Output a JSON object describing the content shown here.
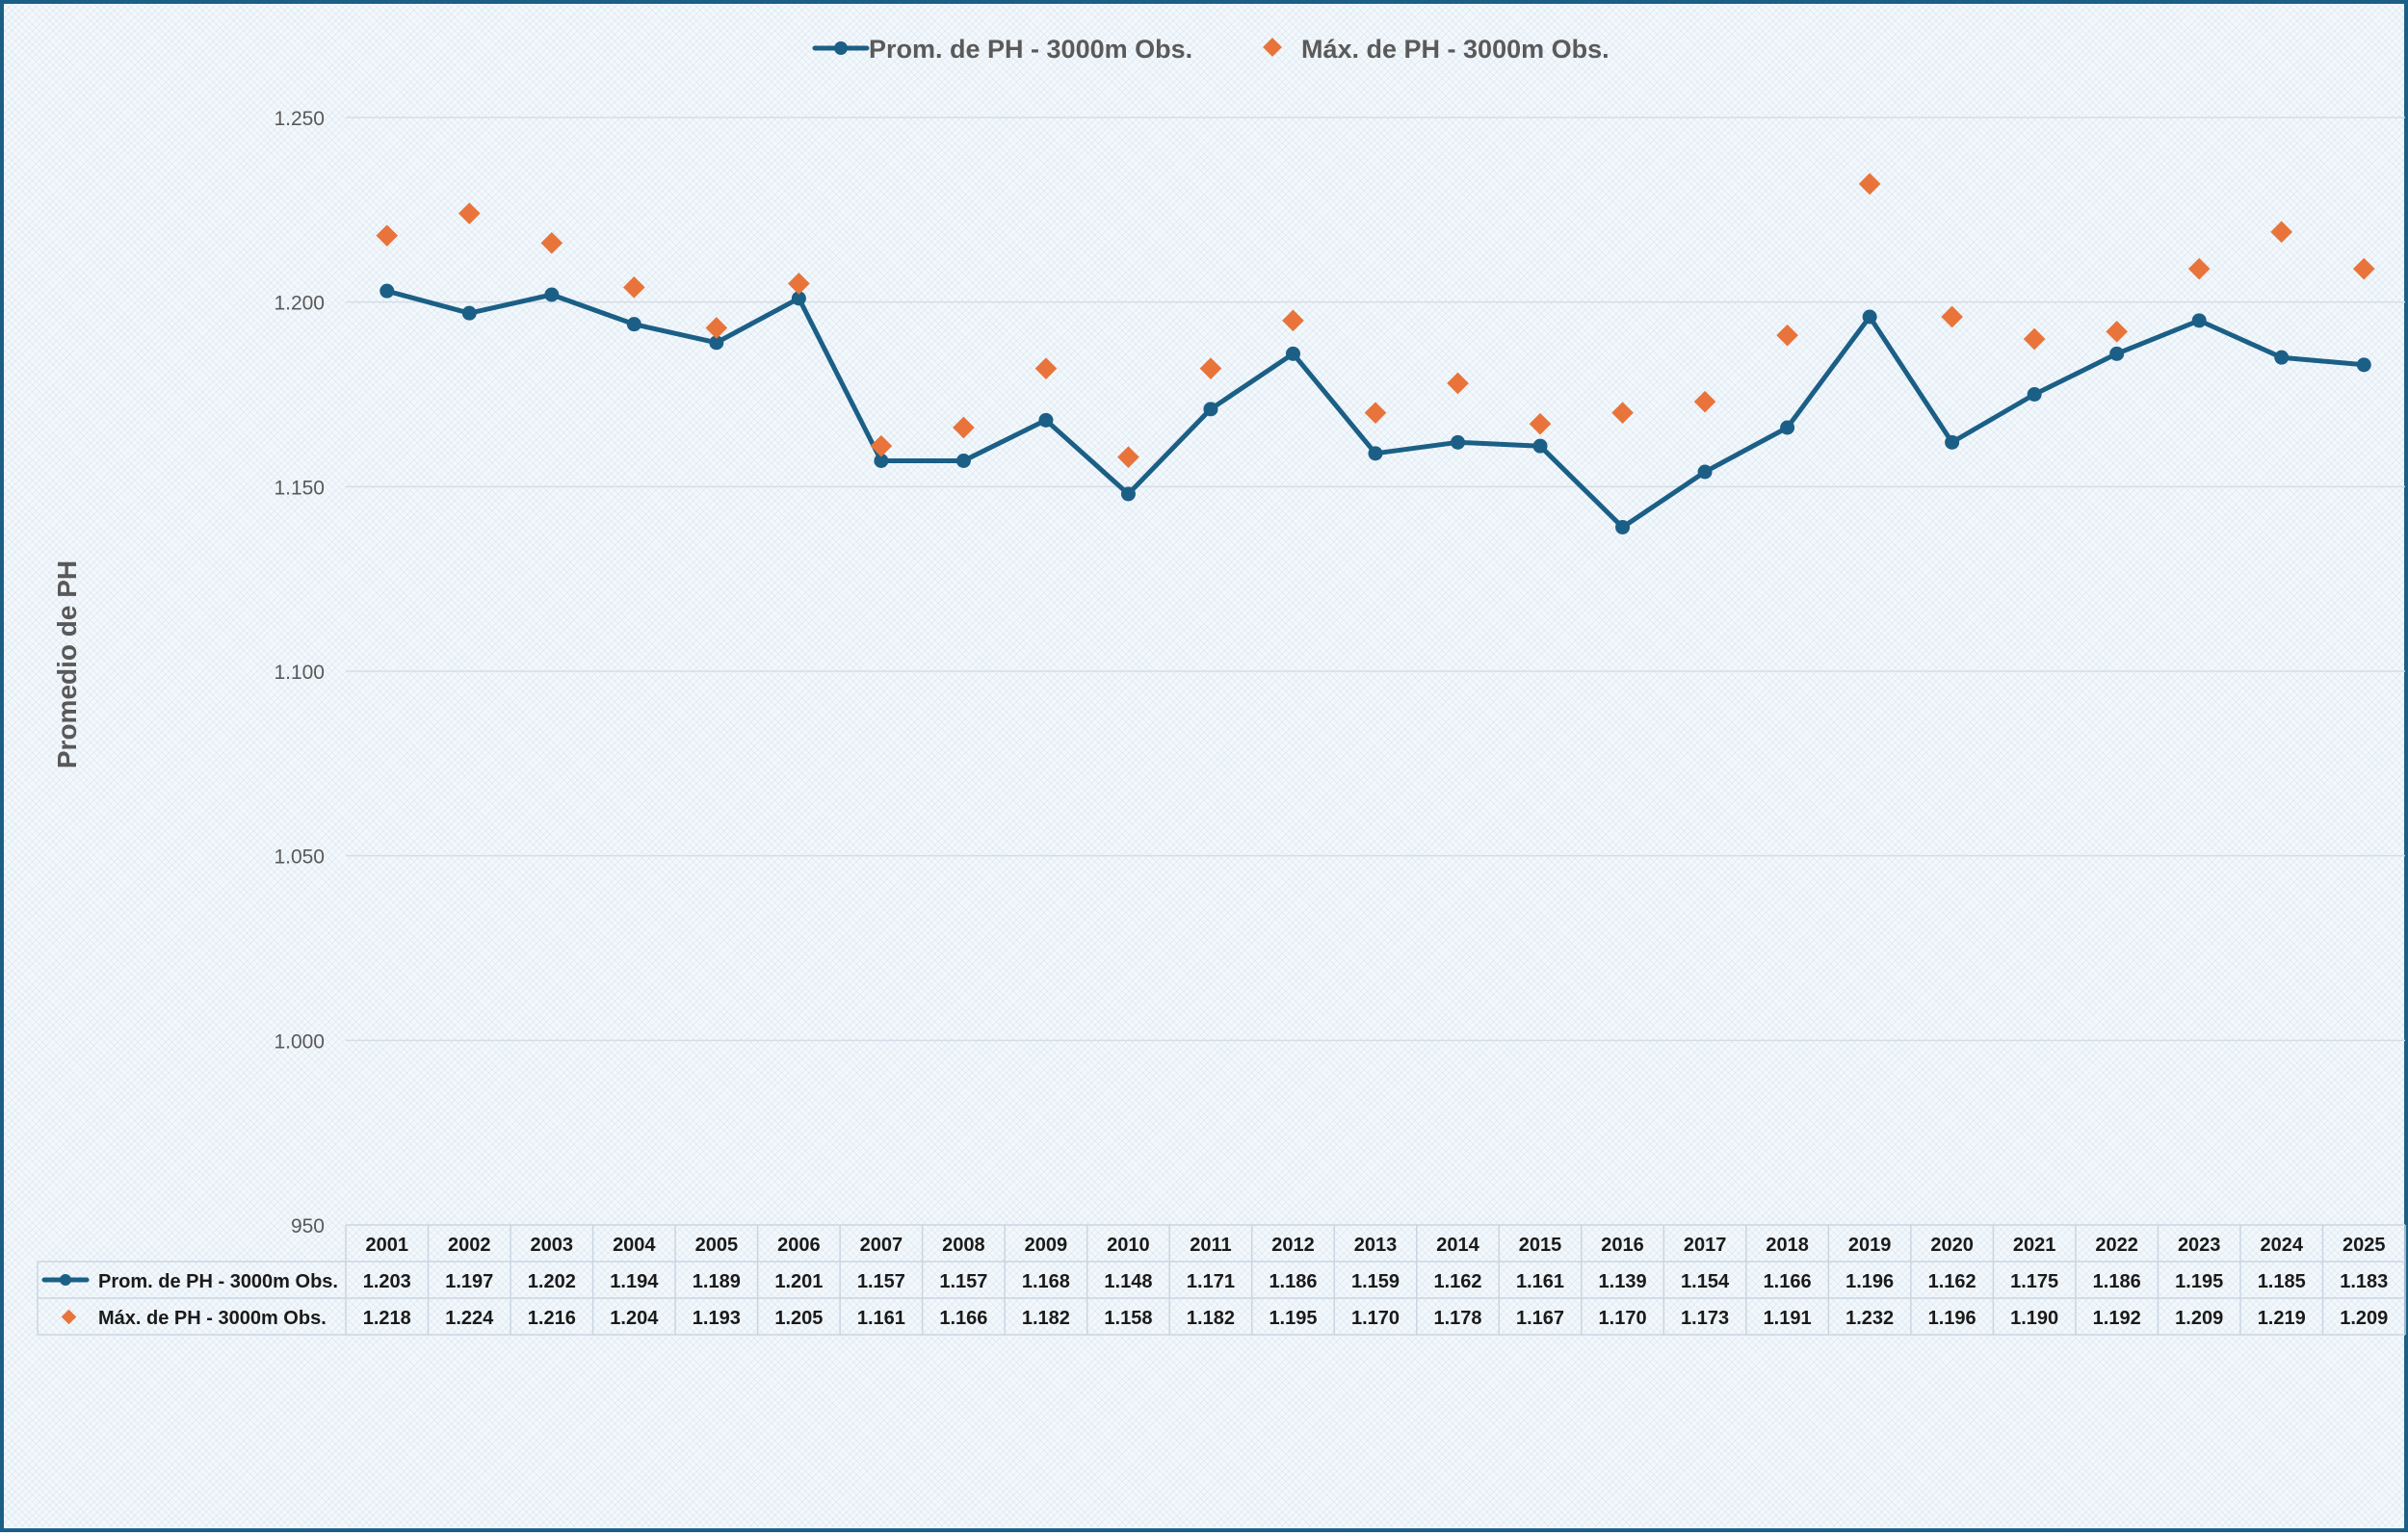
{
  "chart_data": {
    "type": "line",
    "title": "",
    "ylabel": "Promedio de PH",
    "xlabel": "",
    "ylim": [
      950,
      1250
    ],
    "y_ticks": [
      950,
      1000,
      1050,
      1100,
      1150,
      1200,
      1250
    ],
    "y_tick_labels": [
      "950",
      "1.000",
      "1.050",
      "1.100",
      "1.150",
      "1.200",
      "1.250"
    ],
    "grid": true,
    "legend_position": "top-center",
    "categories": [
      "2001",
      "2002",
      "2003",
      "2004",
      "2005",
      "2006",
      "2007",
      "2008",
      "2009",
      "2010",
      "2011",
      "2012",
      "2013",
      "2014",
      "2015",
      "2016",
      "2017",
      "2018",
      "2019",
      "2020",
      "2021",
      "2022",
      "2023",
      "2024",
      "2025"
    ],
    "series": [
      {
        "name": "Prom. de PH - 3000m Obs.",
        "style": "line-marker",
        "color": "#1b5f86",
        "values": [
          1203,
          1197,
          1202,
          1194,
          1189,
          1201,
          1157,
          1157,
          1168,
          1148,
          1171,
          1186,
          1159,
          1162,
          1161,
          1139,
          1154,
          1166,
          1196,
          1162,
          1175,
          1186,
          1195,
          1185,
          1183
        ],
        "labels": [
          "1.203",
          "1.197",
          "1.202",
          "1.194",
          "1.189",
          "1.201",
          "1.157",
          "1.157",
          "1.168",
          "1.148",
          "1.171",
          "1.186",
          "1.159",
          "1.162",
          "1.161",
          "1.139",
          "1.154",
          "1.166",
          "1.196",
          "1.162",
          "1.175",
          "1.186",
          "1.195",
          "1.185",
          "1.183"
        ]
      },
      {
        "name": "Máx. de PH - 3000m Obs.",
        "style": "diamond-marker",
        "color": "#e8743b",
        "values": [
          1218,
          1224,
          1216,
          1204,
          1193,
          1205,
          1161,
          1166,
          1182,
          1158,
          1182,
          1195,
          1170,
          1178,
          1167,
          1170,
          1173,
          1191,
          1232,
          1196,
          1190,
          1192,
          1209,
          1219,
          1209
        ],
        "labels": [
          "1.218",
          "1.224",
          "1.216",
          "1.204",
          "1.193",
          "1.205",
          "1.161",
          "1.166",
          "1.182",
          "1.158",
          "1.182",
          "1.195",
          "1.170",
          "1.178",
          "1.167",
          "1.170",
          "1.173",
          "1.191",
          "1.232",
          "1.196",
          "1.190",
          "1.192",
          "1.209",
          "1.219",
          "1.209"
        ]
      }
    ],
    "data_table": true
  }
}
